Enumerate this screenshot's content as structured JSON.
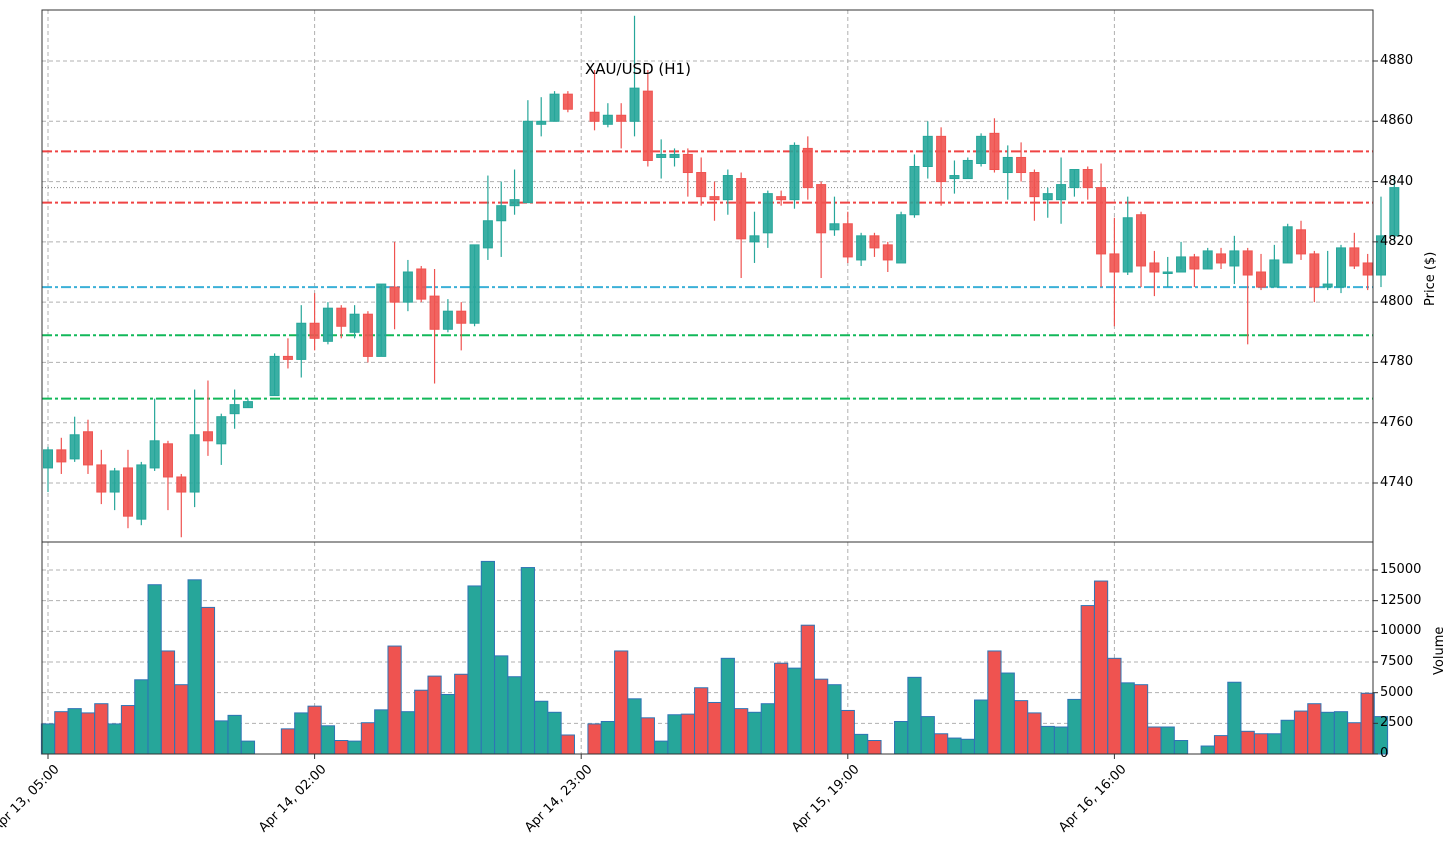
{
  "chart_data": {
    "type": "candlestick",
    "title": "XAU/USD (H1)",
    "ylabel_price": "Price ($)",
    "ylabel_volume": "Volume",
    "price_ylim": [
      4720,
      4897
    ],
    "volume_ylim": [
      0,
      17300
    ],
    "price_ticks": [
      4740,
      4760,
      4780,
      4800,
      4820,
      4840,
      4860,
      4880
    ],
    "volume_ticks": [
      0,
      2500,
      5000,
      7500,
      10000,
      12500,
      15000
    ],
    "volume_tick_labels": [
      "0",
      "2500",
      "5000",
      "7500",
      "10000",
      "12500",
      "15000"
    ],
    "x_ticks": [
      {
        "index": 0,
        "label": "Apr 13, 05:00"
      },
      {
        "index": 20,
        "label": "Apr 14, 02:00"
      },
      {
        "index": 40,
        "label": "Apr 14, 23:00"
      },
      {
        "index": 60,
        "label": "Apr 15, 19:00"
      },
      {
        "index": 80,
        "label": "Apr 16, 16:00"
      }
    ],
    "levels": [
      {
        "name": "resistance-2",
        "value": 4850,
        "color": "#ef4444"
      },
      {
        "name": "resistance-1",
        "value": 4833,
        "color": "#ef4444"
      },
      {
        "name": "pivot",
        "value": 4805,
        "color": "#3bb0d8"
      },
      {
        "name": "support-1",
        "value": 4789,
        "color": "#12b85a"
      },
      {
        "name": "support-2",
        "value": 4768,
        "color": "#12b85a"
      },
      {
        "name": "last-price",
        "value": 4838,
        "color": "#888888",
        "style": "dotted"
      }
    ],
    "colors": {
      "up": "#26a69a",
      "down": "#ef5350",
      "bar_edge": "#2f74b5",
      "grid": "#b0b0b0"
    },
    "candles": [
      [
        4745,
        4752,
        4737,
        4751,
        2450
      ],
      [
        4751,
        4755,
        4743,
        4747,
        3450
      ],
      [
        4748,
        4762,
        4747,
        4756,
        3700
      ],
      [
        4757,
        4761,
        4743,
        4746,
        3350
      ],
      [
        4746,
        4751,
        4733,
        4737,
        4100
      ],
      [
        4737,
        4745,
        4731,
        4744,
        2450
      ],
      [
        4745,
        4751,
        4725,
        4729,
        3950
      ],
      [
        4728,
        4747,
        4726,
        4746,
        6050
      ],
      [
        4745,
        4768,
        4744,
        4754,
        13800
      ],
      [
        4753,
        4754,
        4731,
        4742,
        8400
      ],
      [
        4742,
        4743,
        4722,
        4737,
        5650
      ],
      [
        4737,
        4771,
        4732,
        4756,
        14200
      ],
      [
        4757,
        4774,
        4749,
        4754,
        11950
      ],
      [
        4753,
        4763,
        4746,
        4762,
        2700
      ],
      [
        4763,
        4771,
        4758,
        4766,
        3150
      ],
      [
        4765,
        4768,
        4765,
        4767,
        1050
      ],
      null,
      [
        4769,
        4783,
        4769,
        4782,
        null
      ],
      [
        4782,
        4788,
        4778,
        4781,
        2050
      ],
      [
        4781,
        4799,
        4775,
        4793,
        3350
      ],
      [
        4793,
        4803,
        4784,
        4788,
        3900
      ],
      [
        4787,
        4800,
        4786,
        4798,
        2300
      ],
      [
        4798,
        4799,
        4788,
        4792,
        1100
      ],
      [
        4790,
        4799,
        4788,
        4796,
        1050
      ],
      [
        4796,
        4797,
        4780,
        4782,
        2550
      ],
      [
        4782,
        4806,
        4782,
        4806,
        3600
      ],
      [
        4805,
        4820,
        4791,
        4800,
        8800
      ],
      [
        4800,
        4814,
        4797,
        4810,
        3450
      ],
      [
        4811,
        4812,
        4800,
        4801,
        5200
      ],
      [
        4802,
        4811,
        4773,
        4791,
        6350
      ],
      [
        4791,
        4801,
        4790,
        4797,
        4850
      ],
      [
        4797,
        4800,
        4784,
        4793,
        6500
      ],
      [
        4793,
        4819,
        4792,
        4819,
        13700
      ],
      [
        4818,
        4842,
        4814,
        4827,
        15700
      ],
      [
        4827,
        4840,
        4815,
        4832,
        8000
      ],
      [
        4832,
        4844,
        4829,
        4834,
        6300
      ],
      [
        4833,
        4867,
        4833,
        4860,
        15200
      ],
      [
        4859,
        4868,
        4855,
        4860,
        4300
      ],
      [
        4860,
        4870,
        4860,
        4869,
        3400
      ],
      [
        4869,
        4870,
        4863,
        4864,
        1550
      ],
      null,
      [
        4863,
        4877,
        4857,
        4860,
        2450
      ],
      [
        4859,
        4866,
        4858,
        4862,
        2650
      ],
      [
        4862,
        4866,
        4851,
        4860,
        8400
      ],
      [
        4860,
        4895,
        4855,
        4871,
        4500
      ],
      [
        4870,
        4877,
        4845,
        4847,
        2950
      ],
      [
        4848,
        4854,
        4841,
        4849,
        1050
      ],
      [
        4848,
        4851,
        4845,
        4849,
        3200
      ],
      [
        4849,
        4851,
        4835,
        4843,
        3250
      ],
      [
        4843,
        4848,
        4832,
        4835,
        5400
      ],
      [
        4835,
        4840,
        4827,
        4834,
        4200
      ],
      [
        4834,
        4844,
        4829,
        4842,
        7800
      ],
      [
        4841,
        4843,
        4808,
        4821,
        3700
      ],
      [
        4820,
        4830,
        4813,
        4822,
        3400
      ],
      [
        4823,
        4837,
        4818,
        4836,
        4100
      ],
      [
        4835,
        4837,
        4832,
        4834,
        7400
      ],
      [
        4834,
        4853,
        4831,
        4852,
        7000
      ],
      [
        4851,
        4855,
        4834,
        4838,
        10500
      ],
      [
        4839,
        4840,
        4808,
        4823,
        6100
      ],
      [
        4824,
        4835,
        4822,
        4826,
        5650
      ],
      [
        4826,
        4830,
        4813,
        4815,
        3550
      ],
      [
        4814,
        4823,
        4812,
        4822,
        1600
      ],
      [
        4822,
        4823,
        4815,
        4818,
        1100
      ],
      [
        4819,
        4820,
        4810,
        4814,
        null
      ],
      [
        4813,
        4830,
        4814,
        4829,
        2650
      ],
      [
        4829,
        4849,
        4828,
        4845,
        6250
      ],
      [
        4845,
        4860,
        4841,
        4855,
        3050
      ],
      [
        4855,
        4858,
        4832,
        4840,
        1650
      ],
      [
        4841,
        4847,
        4836,
        4842,
        1300
      ],
      [
        4841,
        4848,
        4841,
        4847,
        1200
      ],
      [
        4846,
        4856,
        4845,
        4855,
        4400
      ],
      [
        4856,
        4861,
        4843,
        4844,
        8400
      ],
      [
        4843,
        4852,
        4834,
        4848,
        6600
      ],
      [
        4848,
        4853,
        4840,
        4843,
        4350
      ],
      [
        4843,
        4844,
        4827,
        4835,
        3350
      ],
      [
        4834,
        4838,
        4828,
        4836,
        2250
      ],
      [
        4834,
        4848,
        4826,
        4839,
        2200
      ],
      [
        4838,
        4844,
        4835,
        4844,
        4450
      ],
      [
        4844,
        4845,
        4834,
        4838,
        12100
      ],
      [
        4838,
        4846,
        4805,
        4816,
        14100
      ],
      [
        4816,
        4828,
        4792,
        4810,
        7800
      ],
      [
        4810,
        4835,
        4809,
        4828,
        5800
      ],
      [
        4829,
        4830,
        4805,
        4812,
        5650
      ],
      [
        4813,
        4817,
        4802,
        4810,
        2200
      ],
      [
        4810,
        4815,
        4805,
        4810,
        2200
      ],
      [
        4810,
        4820,
        4811,
        4815,
        1100
      ],
      [
        4815,
        4816,
        4805,
        4811,
        null
      ],
      [
        4811,
        4818,
        4811,
        4817,
        650
      ],
      [
        4816,
        4818,
        4811,
        4813,
        1500
      ],
      [
        4812,
        4822,
        4806,
        4817,
        5850
      ],
      [
        4817,
        4818,
        4786,
        4809,
        1850
      ],
      [
        4810,
        4816,
        4804,
        4805,
        1650
      ],
      [
        4805,
        4819,
        4805,
        4814,
        1650
      ],
      [
        4813,
        4826,
        4813,
        4825,
        2750
      ],
      [
        4824,
        4827,
        4814,
        4816,
        3500
      ],
      [
        4816,
        4817,
        4800,
        4805,
        4100
      ],
      [
        4805,
        4817,
        4804,
        4806,
        3400
      ],
      [
        4805,
        4819,
        4803,
        4818,
        3450
      ],
      [
        4818,
        4823,
        4811,
        4812,
        2550
      ],
      [
        4813,
        4816,
        4804,
        4809,
        4950
      ],
      [
        4809,
        4835,
        4805,
        4822,
        3050
      ],
      [
        4822,
        4842,
        4820,
        4838,
        null
      ]
    ]
  }
}
